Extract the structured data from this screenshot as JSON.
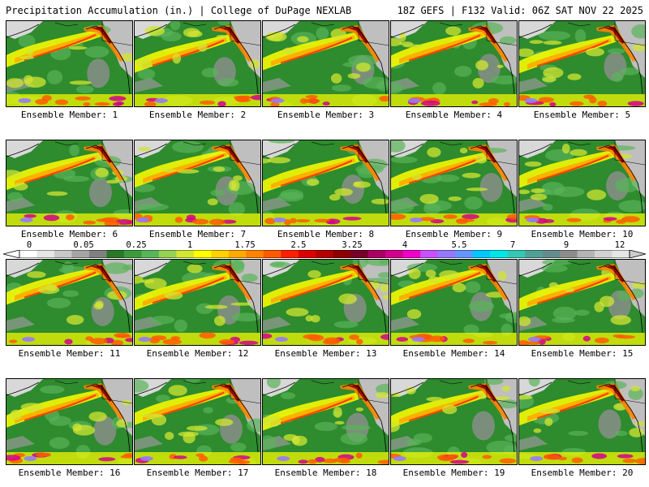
{
  "header": {
    "title": "Precipitation Accumulation (in.) | College of DuPage NEXLAB",
    "run_info": "18Z GEFS | F132 Valid: 06Z SAT NOV 22 2025"
  },
  "caption_prefix": "Ensemble Member:",
  "members": [
    "1",
    "2",
    "3",
    "4",
    "5",
    "6",
    "7",
    "8",
    "9",
    "10",
    "11",
    "12",
    "13",
    "14",
    "15",
    "16",
    "17",
    "18",
    "19",
    "20"
  ],
  "colorbar": {
    "labels": [
      "0",
      "0.05",
      "0.25",
      "1",
      "1.75",
      "2.5",
      "3.25",
      "4",
      "5.5",
      "7",
      "9",
      "12"
    ],
    "colors": [
      "#ffffff",
      "#e6e6e6",
      "#c8c8c8",
      "#a5a5a5",
      "#808080",
      "#287828",
      "#3c9b3c",
      "#5ab45a",
      "#96d250",
      "#d2e632",
      "#ffff00",
      "#ffd200",
      "#ffaa00",
      "#ff8200",
      "#ff5a00",
      "#ff1e00",
      "#dc0000",
      "#b40000",
      "#8c0000",
      "#780028",
      "#aa0064",
      "#d2008c",
      "#f000c8",
      "#c850ff",
      "#9678ff",
      "#6496ff",
      "#00c8ff",
      "#00e6e6",
      "#32c8b4",
      "#50a096",
      "#648c8c",
      "#8c8c8c",
      "#b4b4b4",
      "#d2d2d2",
      "#e6e6e6"
    ]
  }
}
